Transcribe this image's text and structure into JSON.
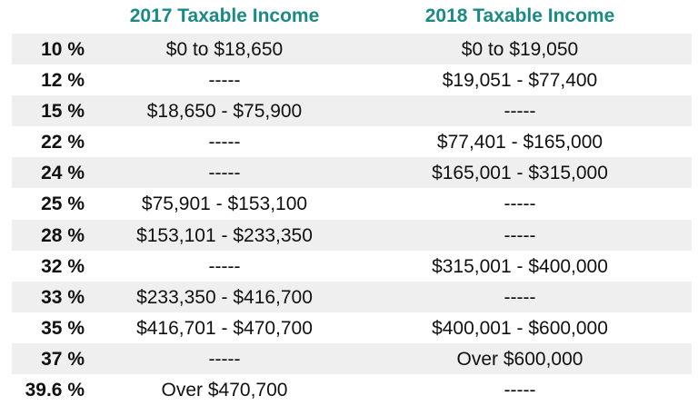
{
  "headers": {
    "col_2017": "2017 Taxable Income",
    "col_2018": "2018 Taxable Income"
  },
  "rows": [
    {
      "rate": "10 %",
      "y2017": "$0 to $18,650",
      "y2018": "$0 to $19,050"
    },
    {
      "rate": "12 %",
      "y2017": "-----",
      "y2018": "$19,051 - $77,400"
    },
    {
      "rate": "15 %",
      "y2017": "$18,650 - $75,900",
      "y2018": "-----"
    },
    {
      "rate": "22 %",
      "y2017": "-----",
      "y2018": "$77,401 - $165,000"
    },
    {
      "rate": "24 %",
      "y2017": "-----",
      "y2018": "$165,001 - $315,000"
    },
    {
      "rate": "25 %",
      "y2017": "$75,901 - $153,100",
      "y2018": "-----"
    },
    {
      "rate": "28 %",
      "y2017": "$153,101 - $233,350",
      "y2018": "-----"
    },
    {
      "rate": "32 %",
      "y2017": "-----",
      "y2018": "$315,001 - $400,000"
    },
    {
      "rate": "33 %",
      "y2017": "$233,350 - $416,700",
      "y2018": "-----"
    },
    {
      "rate": "35 %",
      "y2017": "$416,701 - $470,700",
      "y2018": "$400,001 - $600,000"
    },
    {
      "rate": "37 %",
      "y2017": "-----",
      "y2018": "Over $600,000"
    },
    {
      "rate": "39.6 %",
      "y2017": "Over $470,700",
      "y2018": "-----"
    }
  ],
  "colors": {
    "header": "#1b8a85",
    "stripe": "#efefef"
  }
}
